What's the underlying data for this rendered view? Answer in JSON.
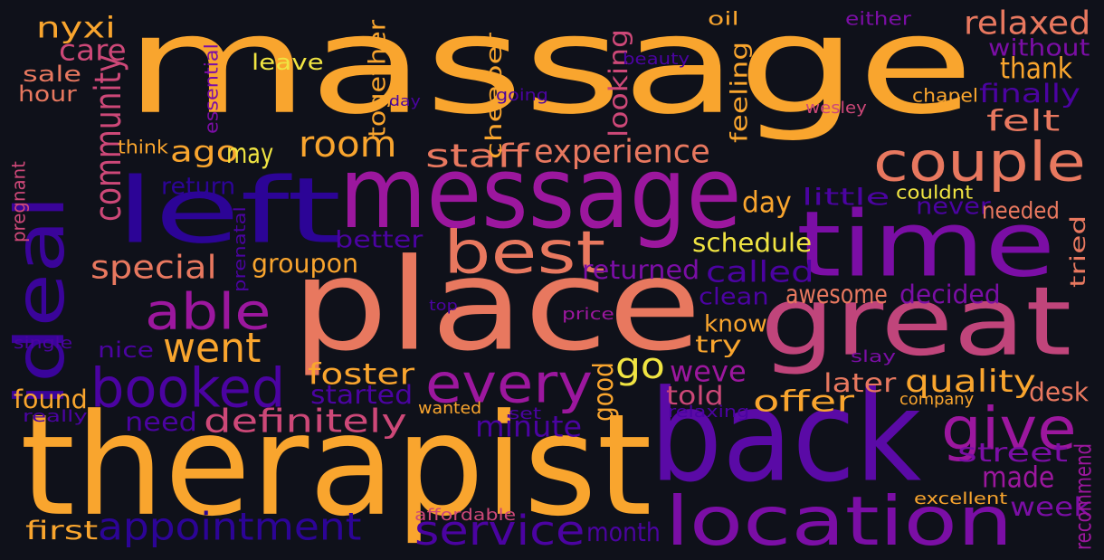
{
  "background": "#0f111a",
  "palette": {
    "orange": "#f9a52e",
    "salmon": "#e8785f",
    "pink": "#cd4878",
    "magenta": "#9c179e",
    "purple": "#7b0ea5",
    "indigo": "#4b03a1",
    "navy": "#2c0496",
    "yellow": "#f0e442"
  },
  "words": [
    {
      "text": "massage",
      "color": "#f9a52e"
    },
    {
      "text": "place",
      "color": "#e8785f"
    },
    {
      "text": "therapist",
      "color": "#f9a52e"
    },
    {
      "text": "back",
      "color": "#5a0aa6"
    },
    {
      "text": "time",
      "color": "#7b0ea5"
    },
    {
      "text": "message",
      "color": "#9c179e"
    },
    {
      "text": "left",
      "color": "#2c0496"
    },
    {
      "text": "great",
      "color": "#c0457b"
    },
    {
      "text": "ideal",
      "color": "#3a049a"
    },
    {
      "text": "location",
      "color": "#7b0ea5"
    },
    {
      "text": "couple",
      "color": "#e8785f"
    },
    {
      "text": "best",
      "color": "#e8785f"
    },
    {
      "text": "booked",
      "color": "#4b03a1"
    },
    {
      "text": "every",
      "color": "#9c179e"
    },
    {
      "text": "appointment",
      "color": "#2c0496"
    },
    {
      "text": "give",
      "color": "#9c179e"
    },
    {
      "text": "able",
      "color": "#9c179e"
    },
    {
      "text": "went",
      "color": "#f9a52e"
    },
    {
      "text": "service",
      "color": "#4b03a1"
    },
    {
      "text": "go",
      "color": "#f0e442"
    },
    {
      "text": "room",
      "color": "#f9a52e"
    },
    {
      "text": "definitely",
      "color": "#cd4878"
    },
    {
      "text": "special",
      "color": "#e8785f"
    },
    {
      "text": "experience",
      "color": "#e8785f"
    },
    {
      "text": "staff",
      "color": "#e8785f"
    },
    {
      "text": "relaxed",
      "color": "#e8785f"
    },
    {
      "text": "thank",
      "color": "#f9a52e"
    },
    {
      "text": "felt",
      "color": "#e8785f"
    },
    {
      "text": "quality",
      "color": "#f9a52e"
    },
    {
      "text": "offer",
      "color": "#f9a52e"
    },
    {
      "text": "weve",
      "color": "#9c179e"
    },
    {
      "text": "foster",
      "color": "#f9a52e"
    },
    {
      "text": "minute",
      "color": "#4b03a1"
    },
    {
      "text": "made",
      "color": "#9c179e"
    },
    {
      "text": "called",
      "color": "#4b03a1"
    },
    {
      "text": "community",
      "color": "#cd4878"
    },
    {
      "text": "care",
      "color": "#cd4878"
    },
    {
      "text": "nyxi",
      "color": "#f9a52e"
    },
    {
      "text": "ago",
      "color": "#f9a52e"
    },
    {
      "text": "may",
      "color": "#f0e442"
    },
    {
      "text": "day",
      "color": "#f9a52e"
    },
    {
      "text": "schedule",
      "color": "#f0e442"
    },
    {
      "text": "groupon",
      "color": "#f9a52e"
    },
    {
      "text": "awesome",
      "color": "#e8785f"
    },
    {
      "text": "returned",
      "color": "#7b0ea5"
    },
    {
      "text": "decided",
      "color": "#7b0ea5"
    },
    {
      "text": "later",
      "color": "#e8785f"
    },
    {
      "text": "told",
      "color": "#cd4878"
    },
    {
      "text": "desk",
      "color": "#e8785f"
    },
    {
      "text": "street",
      "color": "#7b0ea5"
    },
    {
      "text": "week",
      "color": "#7b0ea5"
    },
    {
      "text": "found",
      "color": "#f9a52e"
    },
    {
      "text": "need",
      "color": "#4b03a1"
    },
    {
      "text": "first",
      "color": "#f9a52e"
    },
    {
      "text": "month",
      "color": "#4b03a1"
    },
    {
      "text": "started",
      "color": "#4b03a1"
    },
    {
      "text": "nice",
      "color": "#4b03a1"
    },
    {
      "text": "try",
      "color": "#f9a52e"
    },
    {
      "text": "know",
      "color": "#f9a52e"
    },
    {
      "text": "clean",
      "color": "#4b03a1"
    },
    {
      "text": "better",
      "color": "#4b03a1"
    },
    {
      "text": "return",
      "color": "#2c0496"
    },
    {
      "text": "little",
      "color": "#4b03a1"
    },
    {
      "text": "never",
      "color": "#4b03a1"
    },
    {
      "text": "needed",
      "color": "#e8785f"
    },
    {
      "text": "finally",
      "color": "#4b03a1"
    },
    {
      "text": "without",
      "color": "#7b0ea5"
    },
    {
      "text": "sale",
      "color": "#e8785f"
    },
    {
      "text": "hour",
      "color": "#e8785f"
    },
    {
      "text": "leave",
      "color": "#f0e442"
    },
    {
      "text": "together",
      "color": "#f9a52e"
    },
    {
      "text": "cheaper",
      "color": "#f9a52e"
    },
    {
      "text": "looking",
      "color": "#cd4878"
    },
    {
      "text": "feeling",
      "color": "#f9a52e"
    },
    {
      "text": "good",
      "color": "#f9a52e"
    },
    {
      "text": "recommend",
      "color": "#9c179e"
    },
    {
      "text": "tried",
      "color": "#e8785f"
    },
    {
      "text": "oil",
      "color": "#f9a52e"
    },
    {
      "text": "either",
      "color": "#7b0ea5"
    },
    {
      "text": "beauty",
      "color": "#4b03a1"
    },
    {
      "text": "going",
      "color": "#4b03a1"
    },
    {
      "text": "day",
      "color": "#4b03a1"
    },
    {
      "text": "wesley",
      "color": "#cd4878"
    },
    {
      "text": "chapel",
      "color": "#f9a52e"
    },
    {
      "text": "couldnt",
      "color": "#f0e442"
    },
    {
      "text": "think",
      "color": "#f9a52e"
    },
    {
      "text": "essential",
      "color": "#7b0ea5"
    },
    {
      "text": "pregnant",
      "color": "#cd4878"
    },
    {
      "text": "prenatal",
      "color": "#4b03a1"
    },
    {
      "text": "top",
      "color": "#4b03a1"
    },
    {
      "text": "price",
      "color": "#9c179e"
    },
    {
      "text": "single",
      "color": "#4b03a1"
    },
    {
      "text": "slay",
      "color": "#7b0ea5"
    },
    {
      "text": "company",
      "color": "#f9a52e"
    },
    {
      "text": "really",
      "color": "#4b03a1"
    },
    {
      "text": "wanted",
      "color": "#f9a52e"
    },
    {
      "text": "set",
      "color": "#4b03a1"
    },
    {
      "text": "relaxing",
      "color": "#4b03a1"
    },
    {
      "text": "affordable",
      "color": "#cd4878"
    },
    {
      "text": "excellent",
      "color": "#f9a52e"
    }
  ]
}
